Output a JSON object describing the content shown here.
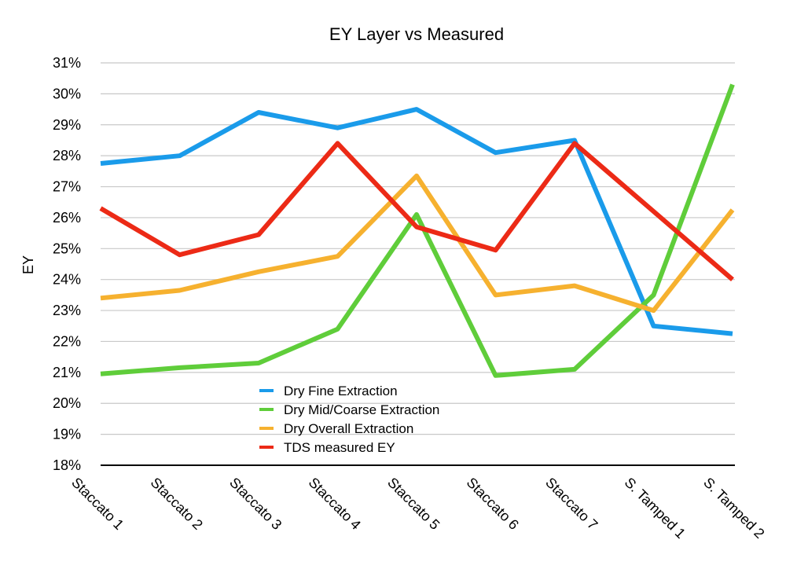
{
  "chart_data": {
    "type": "line",
    "title": "EY Layer vs Measured",
    "xlabel": "",
    "ylabel": "EY",
    "ylim": [
      18,
      31
    ],
    "y_tick_step": 1,
    "y_tick_suffix": "%",
    "grid": true,
    "legend_position": "lower-center",
    "categories": [
      "Staccato 1",
      "Staccato 2",
      "Staccato 3",
      "Staccato 4",
      "Staccato 5",
      "Staccato 6",
      "Staccato 7",
      "S. Tamped 1",
      "S. Tamped 2"
    ],
    "series": [
      {
        "name": "Dry Fine Extraction",
        "color": "#1a9bea",
        "values": [
          27.75,
          28.0,
          29.4,
          28.9,
          29.5,
          28.1,
          28.5,
          22.5,
          22.25
        ]
      },
      {
        "name": "Dry Mid/Coarse Extraction",
        "color": "#5fcd3a",
        "values": [
          20.95,
          21.15,
          21.3,
          22.4,
          26.1,
          20.9,
          21.1,
          23.5,
          30.3
        ]
      },
      {
        "name": "Dry Overall Extraction",
        "color": "#f6b12f",
        "values": [
          23.4,
          23.65,
          24.25,
          24.75,
          27.35,
          23.5,
          23.8,
          23.0,
          26.25
        ]
      },
      {
        "name": "TDS measured EY",
        "color": "#ec2a16",
        "values": [
          26.3,
          24.8,
          25.45,
          28.4,
          25.7,
          24.95,
          28.4,
          26.2,
          24.0
        ]
      }
    ]
  }
}
